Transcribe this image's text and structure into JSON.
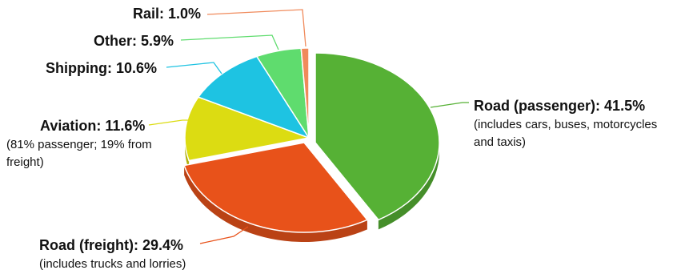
{
  "chart_data": {
    "type": "pie",
    "title": "",
    "series": [
      {
        "label": "Road (passenger)",
        "value": 41.5,
        "value_text": "41.5%",
        "note": "(includes cars, buses, motorcycles and taxis)",
        "color": "#56b135"
      },
      {
        "label": "Road (freight)",
        "value": 29.4,
        "value_text": "29.4%",
        "note": "(includes trucks and lorries)",
        "color": "#e8521a"
      },
      {
        "label": "Aviation",
        "value": 11.6,
        "value_text": "11.6%",
        "note": "(81% passenger; 19% from freight)",
        "color": "#dcdc12"
      },
      {
        "label": "Shipping",
        "value": 10.6,
        "value_text": "10.6%",
        "note": "",
        "color": "#1ec3e2"
      },
      {
        "label": "Other",
        "value": 5.9,
        "value_text": "5.9%",
        "note": "",
        "color": "#5fdc6e"
      },
      {
        "label": "Rail",
        "value": 1.0,
        "value_text": "1.0%",
        "note": "",
        "color": "#f08a5b"
      }
    ],
    "exploded": [
      "Road (passenger)",
      "Road (freight)"
    ],
    "legend": "none (labels with leader lines)"
  }
}
